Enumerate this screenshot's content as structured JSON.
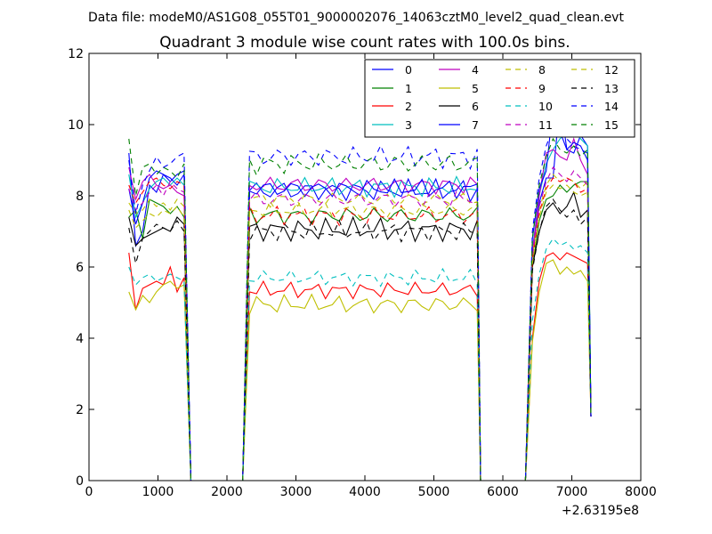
{
  "figure": {
    "suptitle": "Data file: modeM0/AS1G08_055T01_9000002076_14063cztM0_level2_quad_clean.evt"
  },
  "chart_data": {
    "type": "line",
    "title": "Quadrant 3 module wise count rates with 100.0s bins.",
    "xlabel": "",
    "ylabel": "",
    "x_offset_label": "+2.63195e8",
    "xlim": [
      0,
      8000
    ],
    "ylim": [
      0,
      12
    ],
    "xticks": [
      0,
      1000,
      2000,
      3000,
      4000,
      5000,
      6000,
      7000,
      8000
    ],
    "xtick_labels": [
      "0",
      "1000",
      "2000",
      "3000",
      "4000",
      "5000",
      "6000",
      "7000",
      "8000"
    ],
    "yticks": [
      0,
      2,
      4,
      6,
      8,
      10,
      12
    ],
    "ytick_labels": [
      "0",
      "2",
      "4",
      "6",
      "8",
      "10",
      "12"
    ],
    "grid": false,
    "legend_position": "upper-right",
    "legend_columns": 4,
    "segment_starts": [
      578,
      2328,
      6428
    ],
    "segment_ends": [
      1378,
      5578,
      7278
    ],
    "drop_ends": [
      1478,
      5678,
      7278
    ],
    "segment_step": 100,
    "zero_runs": [
      [
        1478,
        2228
      ],
      [
        5678,
        6328
      ]
    ],
    "series": [
      {
        "name": "0",
        "color": "#0000ff",
        "dash": "solid",
        "seg1": [
          9.2,
          6.6,
          7.0,
          8.3,
          8.1,
          8.6,
          8.5,
          8.3,
          8.6
        ],
        "seg2_level": 8.15,
        "seg2_amp": 0.35,
        "seg3": [
          6.3,
          7.8,
          8.5,
          8.5,
          10.7,
          9.3,
          9.2,
          9.7,
          9.4
        ]
      },
      {
        "name": "1",
        "color": "#008000",
        "dash": "solid",
        "seg1": [
          7.4,
          7.6,
          6.8,
          7.9,
          7.8,
          7.7,
          7.5,
          7.7,
          7.4
        ],
        "seg2_level": 7.45,
        "seg2_amp": 0.3,
        "seg3": [
          6.0,
          7.3,
          7.9,
          8.0,
          8.3,
          8.1,
          8.3,
          8.4,
          8.4
        ]
      },
      {
        "name": "2",
        "color": "#ff0000",
        "dash": "solid",
        "seg1": [
          6.4,
          4.8,
          5.4,
          5.5,
          5.6,
          5.5,
          6.0,
          5.3,
          5.7
        ],
        "seg2_level": 5.35,
        "seg2_amp": 0.25,
        "seg3": [
          4.0,
          5.6,
          6.3,
          6.4,
          6.2,
          6.4,
          6.3,
          6.2,
          6.1
        ]
      },
      {
        "name": "3",
        "color": "#00bfbf",
        "dash": "solid",
        "seg1": [
          8.6,
          7.4,
          7.8,
          8.2,
          8.4,
          8.5,
          8.3,
          8.5,
          8.3
        ],
        "seg2_level": 8.25,
        "seg2_amp": 0.3,
        "seg3": [
          6.5,
          8.0,
          8.9,
          9.3,
          9.6,
          9.8,
          9.9,
          9.6,
          9.4
        ]
      },
      {
        "name": "4",
        "color": "#bf00bf",
        "dash": "solid",
        "seg1": [
          8.8,
          7.9,
          8.4,
          8.6,
          8.3,
          8.2,
          8.3,
          8.1,
          8.0
        ],
        "seg2_level": 8.3,
        "seg2_amp": 0.3,
        "seg3": [
          6.4,
          8.0,
          9.2,
          9.3,
          9.1,
          9.0,
          9.6,
          9.0,
          8.6
        ]
      },
      {
        "name": "5",
        "color": "#bfbf00",
        "dash": "solid",
        "seg1": [
          5.3,
          4.8,
          5.2,
          5.0,
          5.3,
          5.5,
          5.6,
          5.4,
          5.5
        ],
        "seg2_level": 4.95,
        "seg2_amp": 0.3,
        "seg3": [
          3.9,
          5.3,
          6.1,
          6.2,
          5.8,
          6.0,
          5.8,
          5.9,
          5.6
        ]
      },
      {
        "name": "6",
        "color": "#000000",
        "dash": "solid",
        "seg1": [
          7.4,
          6.6,
          6.8,
          6.9,
          7.0,
          7.1,
          7.0,
          7.4,
          7.2
        ],
        "seg2_level": 7.05,
        "seg2_amp": 0.35,
        "seg3": [
          6.0,
          7.0,
          7.6,
          7.8,
          7.5,
          7.7,
          8.1,
          7.4,
          7.6
        ]
      },
      {
        "name": "7",
        "color": "#0000ff",
        "dash": "solid",
        "seg1": [
          8.2,
          7.2,
          7.8,
          8.5,
          8.7,
          8.6,
          8.4,
          8.6,
          8.7
        ],
        "seg2_level": 8.2,
        "seg2_amp": 0.3,
        "seg3": [
          6.8,
          8.2,
          8.7,
          10.5,
          9.8,
          9.3,
          9.5,
          9.4,
          9.0
        ]
      },
      {
        "name": "8",
        "color": "#bfbf00",
        "dash": "dashed",
        "seg1": [
          7.8,
          7.5,
          7.6,
          7.9,
          7.7,
          7.8,
          7.6,
          7.9,
          7.7
        ],
        "seg2_level": 7.9,
        "seg2_amp": 0.25,
        "seg3": [
          6.3,
          7.6,
          8.3,
          8.6,
          8.4,
          8.5,
          8.4,
          8.2,
          8.4
        ]
      },
      {
        "name": "9",
        "color": "#ff0000",
        "dash": "dashed",
        "seg1": [
          8.3,
          7.8,
          8.1,
          8.4,
          8.5,
          8.3,
          8.2,
          8.4,
          8.3
        ],
        "seg2_level": 7.45,
        "seg2_amp": 0.3,
        "seg3": [
          6.2,
          7.5,
          8.2,
          8.5,
          8.4,
          8.5,
          8.4,
          8.1,
          8.2
        ]
      },
      {
        "name": "10",
        "color": "#00bfbf",
        "dash": "dashed",
        "seg1": [
          6.0,
          5.5,
          5.7,
          5.8,
          5.6,
          5.7,
          5.8,
          5.7,
          5.6
        ],
        "seg2_level": 5.7,
        "seg2_amp": 0.25,
        "seg3": [
          4.5,
          5.8,
          6.5,
          6.8,
          6.6,
          6.7,
          6.5,
          6.6,
          6.4
        ]
      },
      {
        "name": "11",
        "color": "#bf00bf",
        "dash": "dashed",
        "seg1": [
          8.2,
          7.6,
          7.8,
          8.1,
          8.3,
          8.0,
          8.4,
          8.2,
          8.1
        ],
        "seg2_level": 7.9,
        "seg2_amp": 0.3,
        "seg3": [
          6.3,
          7.7,
          8.4,
          8.8,
          8.6,
          8.4,
          8.7,
          8.5,
          8.3
        ]
      },
      {
        "name": "12",
        "color": "#bfbf00",
        "dash": "dashed",
        "seg1": [
          7.6,
          7.1,
          7.3,
          7.5,
          7.4,
          7.6,
          7.5,
          7.7,
          7.4
        ],
        "seg2_level": 7.6,
        "seg2_amp": 0.25,
        "seg3": [
          6.1,
          7.4,
          8.1,
          8.3,
          8.2,
          8.3,
          8.1,
          8.0,
          8.1
        ]
      },
      {
        "name": "13",
        "color": "#000000",
        "dash": "dashed",
        "seg1": [
          7.1,
          6.1,
          6.8,
          7.0,
          7.2,
          7.1,
          7.0,
          7.3,
          7.0
        ],
        "seg2_level": 7.0,
        "seg2_amp": 0.3,
        "seg3": [
          5.9,
          7.0,
          7.7,
          7.9,
          7.6,
          7.4,
          7.6,
          7.2,
          7.4
        ]
      },
      {
        "name": "14",
        "color": "#0000ff",
        "dash": "dashed",
        "seg1": [
          9.0,
          7.5,
          8.3,
          8.7,
          9.1,
          8.8,
          8.9,
          9.1,
          9.2
        ],
        "seg2_level": 9.1,
        "seg2_amp": 0.35,
        "seg3": [
          7.0,
          8.5,
          9.4,
          9.9,
          10.1,
          9.6,
          9.4,
          9.3,
          9.2
        ]
      },
      {
        "name": "15",
        "color": "#008000",
        "dash": "dashed",
        "seg1": [
          9.6,
          8.0,
          8.8,
          8.9,
          8.6,
          8.8,
          8.7,
          8.5,
          8.9
        ],
        "seg2_level": 8.9,
        "seg2_amp": 0.35,
        "seg3": [
          6.8,
          8.3,
          9.1,
          9.6,
          9.3,
          9.2,
          9.4,
          9.1,
          9.3
        ]
      }
    ]
  }
}
